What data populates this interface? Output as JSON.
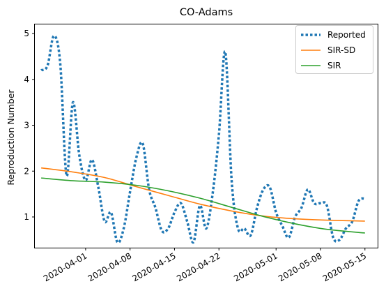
{
  "chart_data": {
    "type": "line",
    "title": "CO-Adams",
    "xlabel": "",
    "ylabel": "Reproduction Number",
    "x_tick_labels": [
      "2020-04-01",
      "2020-04-08",
      "2020-04-15",
      "2020-04-22",
      "2020-05-01",
      "2020-05-08",
      "2020-05-15"
    ],
    "x_tick_dates": [
      "2020-04-01",
      "2020-04-08",
      "2020-04-15",
      "2020-04-22",
      "2020-05-01",
      "2020-05-08",
      "2020-05-15"
    ],
    "y_ticks": [
      1,
      2,
      3,
      4,
      5
    ],
    "xlim": [
      "2020-03-24",
      "2020-05-17"
    ],
    "ylim": [
      0.33,
      5.2
    ],
    "grid": false,
    "legend_position": "top-right",
    "series": [
      {
        "name": "Reported",
        "style": "dotted",
        "color": "#1f77b4",
        "x": [
          "2020-03-25",
          "2020-03-26",
          "2020-03-27",
          "2020-03-28",
          "2020-03-29",
          "2020-03-30",
          "2020-03-31",
          "2020-04-01",
          "2020-04-02",
          "2020-04-03",
          "2020-04-04",
          "2020-04-05",
          "2020-04-06",
          "2020-04-07",
          "2020-04-08",
          "2020-04-09",
          "2020-04-10",
          "2020-04-11",
          "2020-04-12",
          "2020-04-13",
          "2020-04-14",
          "2020-04-15",
          "2020-04-16",
          "2020-04-17",
          "2020-04-18",
          "2020-04-19",
          "2020-04-20",
          "2020-04-21",
          "2020-04-22",
          "2020-04-23",
          "2020-04-24",
          "2020-04-25",
          "2020-04-26",
          "2020-04-27",
          "2020-04-28",
          "2020-04-29",
          "2020-04-30",
          "2020-05-01",
          "2020-05-02",
          "2020-05-03",
          "2020-05-04",
          "2020-05-05",
          "2020-05-06",
          "2020-05-07",
          "2020-05-08",
          "2020-05-09",
          "2020-05-10",
          "2020-05-11",
          "2020-05-12",
          "2020-05-13",
          "2020-05-14",
          "2020-05-15"
        ],
        "y": [
          4.2,
          4.3,
          4.95,
          4.35,
          1.9,
          3.5,
          2.35,
          1.8,
          2.25,
          1.65,
          0.9,
          1.1,
          0.45,
          0.75,
          1.55,
          2.3,
          2.6,
          1.6,
          1.2,
          0.7,
          0.75,
          1.1,
          1.3,
          0.9,
          0.45,
          1.25,
          0.75,
          1.5,
          2.8,
          4.6,
          1.8,
          0.75,
          0.75,
          0.6,
          1.2,
          1.6,
          1.65,
          1.1,
          0.8,
          0.55,
          1.0,
          1.2,
          1.6,
          1.3,
          1.3,
          1.25,
          0.55,
          0.5,
          0.75,
          0.9,
          1.35,
          1.4
        ]
      },
      {
        "name": "SIR-SD",
        "style": "solid",
        "color": "#ff7f0e",
        "x": [
          "2020-03-25",
          "2020-03-30",
          "2020-04-04",
          "2020-04-09",
          "2020-04-14",
          "2020-04-19",
          "2020-04-24",
          "2020-04-29",
          "2020-05-04",
          "2020-05-09",
          "2020-05-15"
        ],
        "y": [
          2.07,
          1.98,
          1.86,
          1.66,
          1.47,
          1.28,
          1.13,
          1.02,
          0.96,
          0.93,
          0.91
        ]
      },
      {
        "name": "SIR",
        "style": "solid",
        "color": "#2ca02c",
        "x": [
          "2020-03-25",
          "2020-03-30",
          "2020-04-04",
          "2020-04-09",
          "2020-04-14",
          "2020-04-19",
          "2020-04-24",
          "2020-04-29",
          "2020-05-04",
          "2020-05-09",
          "2020-05-15"
        ],
        "y": [
          1.85,
          1.79,
          1.76,
          1.69,
          1.57,
          1.41,
          1.21,
          1.01,
          0.85,
          0.73,
          0.65
        ]
      }
    ]
  }
}
